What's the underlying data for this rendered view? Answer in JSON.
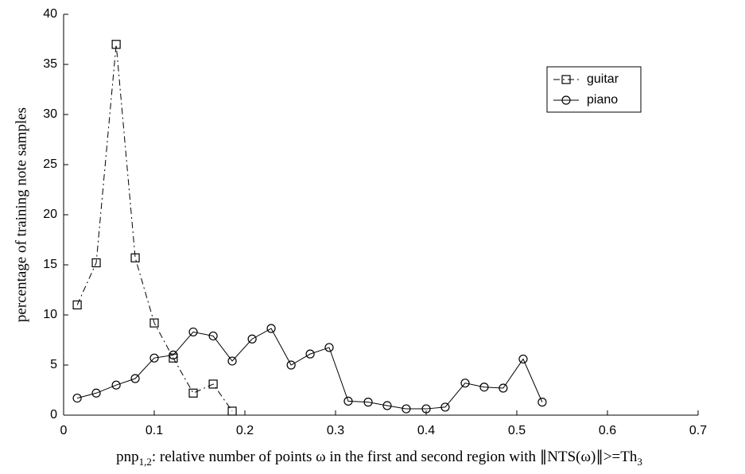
{
  "chart_data": {
    "type": "line",
    "ylabel": "percentage of training note samples",
    "xlabel": {
      "main": "pnp",
      "sub1": "1,2",
      "rest": ": relative number of points ω in the first and second region with ∥NTS(ω)∥>=Th",
      "sub2": "3"
    },
    "series": [
      {
        "name": "guitar",
        "color": "#000000",
        "marker": "square",
        "dash": "dashdot",
        "x": [
          0.015,
          0.036,
          0.058,
          0.079,
          0.1,
          0.121,
          0.143,
          0.165,
          0.186
        ],
        "values": [
          11,
          15.2,
          37,
          15.7,
          9.2,
          5.7,
          2.2,
          3.1,
          0.4
        ]
      },
      {
        "name": "piano",
        "color": "#000000",
        "marker": "circle",
        "dash": "solid",
        "x": [
          0.015,
          0.036,
          0.058,
          0.079,
          0.1,
          0.121,
          0.143,
          0.165,
          0.186,
          0.208,
          0.229,
          0.251,
          0.272,
          0.293,
          0.314,
          0.336,
          0.357,
          0.378,
          0.4,
          0.421,
          0.443,
          0.464,
          0.485,
          0.507,
          0.528
        ],
        "values": [
          1.7,
          2.2,
          3.0,
          3.65,
          5.7,
          6.0,
          8.3,
          7.9,
          5.4,
          7.6,
          8.65,
          5.0,
          6.1,
          6.75,
          1.4,
          1.3,
          0.95,
          0.63,
          0.63,
          0.8,
          3.2,
          2.8,
          2.7,
          5.6,
          1.3
        ]
      }
    ],
    "xlim": [
      0,
      0.7
    ],
    "xticks": [
      0,
      0.1,
      0.2,
      0.3,
      0.4,
      0.5,
      0.6,
      0.7
    ],
    "ylim": [
      0,
      40
    ],
    "yticks": [
      0,
      5,
      10,
      15,
      20,
      25,
      30,
      35,
      40
    ],
    "legend": "upper-right"
  }
}
